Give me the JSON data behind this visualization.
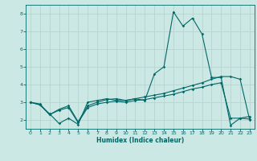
{
  "xlabel": "Humidex (Indice chaleur)",
  "background_color": "#cce8e4",
  "grid_color": "#b8d4d0",
  "line_color": "#006868",
  "xlim": [
    -0.5,
    23.5
  ],
  "ylim": [
    1.5,
    8.5
  ],
  "xticks": [
    0,
    1,
    2,
    3,
    4,
    5,
    6,
    7,
    8,
    9,
    10,
    11,
    12,
    13,
    14,
    15,
    16,
    17,
    18,
    19,
    20,
    21,
    22,
    23
  ],
  "yticks": [
    2,
    3,
    4,
    5,
    6,
    7,
    8
  ],
  "line1_x": [
    0,
    1,
    2,
    3,
    4,
    5,
    6,
    7,
    8,
    9,
    10,
    11,
    12,
    13,
    14,
    15,
    16,
    17,
    18,
    19,
    20,
    21,
    22,
    23
  ],
  "line1_y": [
    3.0,
    2.85,
    2.35,
    1.8,
    2.1,
    1.75,
    3.0,
    3.1,
    3.2,
    3.1,
    3.1,
    3.2,
    3.1,
    4.6,
    5.0,
    8.1,
    7.3,
    7.75,
    6.85,
    4.4,
    4.4,
    1.7,
    2.1,
    2.2
  ],
  "line2_x": [
    0,
    1,
    2,
    3,
    4,
    5,
    6,
    7,
    8,
    9,
    10,
    11,
    12,
    13,
    14,
    15,
    16,
    17,
    18,
    19,
    20,
    21,
    22,
    23
  ],
  "line2_y": [
    3.0,
    2.9,
    2.3,
    2.6,
    2.8,
    1.9,
    2.8,
    3.0,
    3.15,
    3.2,
    3.1,
    3.2,
    3.3,
    3.4,
    3.5,
    3.65,
    3.8,
    3.95,
    4.1,
    4.3,
    4.45,
    4.45,
    4.3,
    2.0
  ],
  "line3_x": [
    0,
    1,
    2,
    3,
    4,
    5,
    6,
    7,
    8,
    9,
    10,
    11,
    12,
    13,
    14,
    15,
    16,
    17,
    18,
    19,
    20,
    21,
    22,
    23
  ],
  "line3_y": [
    3.0,
    2.85,
    2.3,
    2.55,
    2.7,
    1.85,
    2.7,
    2.9,
    3.0,
    3.05,
    3.0,
    3.1,
    3.15,
    3.25,
    3.35,
    3.45,
    3.6,
    3.75,
    3.85,
    4.0,
    4.1,
    2.1,
    2.1,
    2.05
  ]
}
